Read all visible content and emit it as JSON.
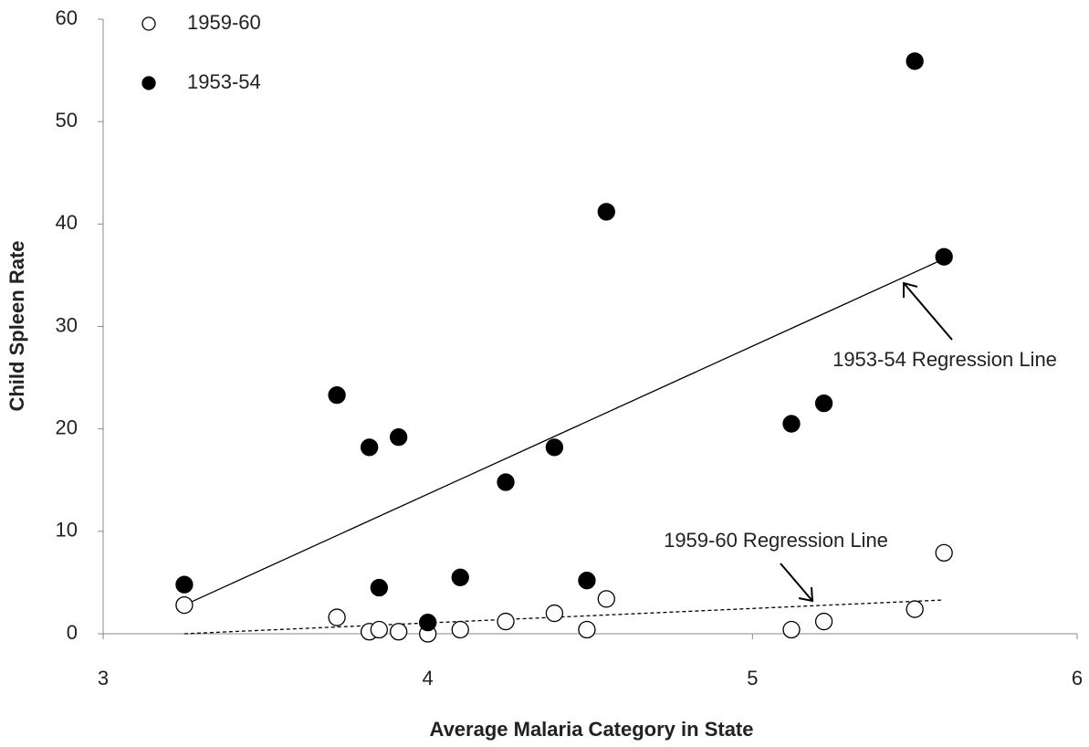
{
  "chart_data": {
    "type": "scatter",
    "xlabel": "Average Malaria Category in State",
    "ylabel": "Child Spleen Rate",
    "xlim": [
      3,
      6
    ],
    "xticks": [
      3,
      4,
      5,
      6
    ],
    "ylim": [
      0,
      60
    ],
    "yticks": [
      0,
      10,
      20,
      30,
      40,
      50,
      60
    ],
    "grid": false,
    "legend": "upper left",
    "series": [
      {
        "name": "1959-60",
        "color": "#000000",
        "marker_fill": "none",
        "x": [
          3.25,
          3.72,
          3.82,
          3.85,
          3.91,
          4.0,
          4.1,
          4.24,
          4.39,
          4.49,
          4.55,
          5.12,
          5.22,
          5.5,
          5.59
        ],
        "values": [
          2.8,
          1.6,
          0.2,
          0.4,
          0.2,
          0,
          0.4,
          1.2,
          2.0,
          0.4,
          3.4,
          0.4,
          1.2,
          2.4,
          7.9
        ]
      },
      {
        "name": "1953-54",
        "color": "#000000",
        "marker_fill": "#000000",
        "x": [
          3.25,
          3.72,
          3.82,
          3.85,
          3.91,
          4.0,
          4.1,
          4.24,
          4.39,
          4.49,
          4.55,
          5.12,
          5.22,
          5.5,
          5.59
        ],
        "values": [
          4.8,
          23.3,
          18.2,
          4.5,
          19.2,
          1.1,
          5.5,
          14.8,
          18.2,
          5.2,
          41.2,
          20.5,
          22.5,
          55.9,
          36.8
        ]
      }
    ],
    "regression_lines": [
      {
        "label": "1953-54 Regression Line",
        "dashed": false,
        "x": [
          3.25,
          5.59
        ],
        "values": [
          2.8,
          36.6
        ]
      },
      {
        "label": "1959-60 Regression Line",
        "dashed": true,
        "x": [
          3.25,
          5.59
        ],
        "values": [
          0,
          3.3
        ]
      }
    ]
  }
}
